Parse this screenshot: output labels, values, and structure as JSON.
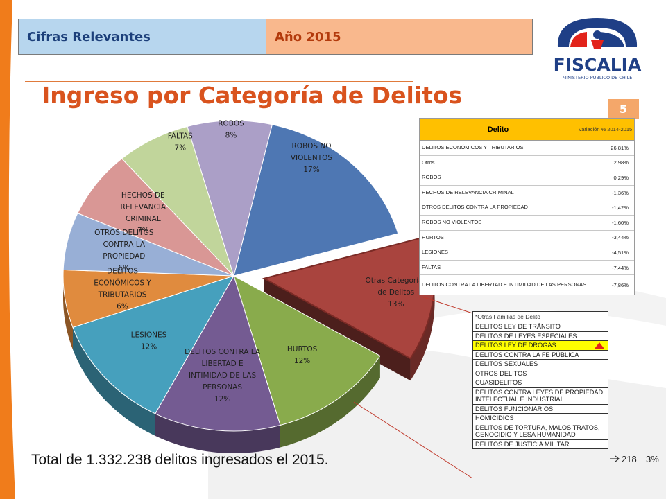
{
  "header": {
    "left": "Cifras Relevantes",
    "right": "Año 2015"
  },
  "logo": {
    "name": "fiscalia-logo",
    "text": "FISCALIA",
    "subtext": "MINISTERIO PUBLICO DE CHILE"
  },
  "title": "Ingreso por Categoría de Delitos",
  "page_number": "5",
  "total_text": "Total de 1.332.238 delitos ingresados el 2015.",
  "chart_data": {
    "type": "pie",
    "style": "3d-exploded",
    "slices": [
      {
        "label": "ROBOS NO VIOLENTOS",
        "value": 17,
        "text": "17%",
        "color": "#4e77b3"
      },
      {
        "label": "Otras Categorías de Delitos",
        "value": 13,
        "text": "13%",
        "color": "#a9443e",
        "exploded": true
      },
      {
        "label": "HURTOS",
        "value": 12,
        "text": "12%",
        "color": "#89ab4c"
      },
      {
        "label": "DELITOS CONTRA LA LIBERTAD E INTIMIDAD DE LAS PERSONAS",
        "value": 12,
        "text": "12%",
        "color": "#745b92"
      },
      {
        "label": "LESIONES",
        "value": 12,
        "text": "12%",
        "color": "#46a0bd"
      },
      {
        "label": "DELITOS ECONÓMICOS Y TRIBUTARIOS",
        "value": 6,
        "text": "6%",
        "color": "#e08b3e"
      },
      {
        "label": "OTROS DELITOS CONTRA LA PROPIEDAD",
        "value": 6,
        "text": "6%",
        "color": "#98afd6"
      },
      {
        "label": "HECHOS DE RELEVANCIA CRIMINAL",
        "value": 7,
        "text": "7%",
        "color": "#d99795"
      },
      {
        "label": "FALTAS",
        "value": 7,
        "text": "7%",
        "color": "#c1d59b"
      },
      {
        "label": "ROBOS",
        "value": 8,
        "text": "8%",
        "color": "#ab9fc7"
      }
    ]
  },
  "variation_table": {
    "header": {
      "delito": "Delito",
      "variacion": "Variación % 2014-2015"
    },
    "rows": [
      {
        "delito": "DELITOS ECONÓMICOS Y TRIBUTARIOS",
        "variacion": "26,81%"
      },
      {
        "delito": "Otros",
        "variacion": "2,98%"
      },
      {
        "delito": "ROBOS",
        "variacion": "0,29%"
      },
      {
        "delito": "HECHOS DE RELEVANCIA CRIMINAL",
        "variacion": "-1,36%"
      },
      {
        "delito": "OTROS DELITOS CONTRA LA PROPIEDAD",
        "variacion": "-1,42%"
      },
      {
        "delito": "ROBOS NO VIOLENTOS",
        "variacion": "-1,60%"
      },
      {
        "delito": "HURTOS",
        "variacion": "-3,44%"
      },
      {
        "delito": "LESIONES",
        "variacion": "-4,51%"
      },
      {
        "delito": "FALTAS",
        "variacion": "-7,44%"
      },
      {
        "delito": "DELITOS CONTRA LA LIBERTAD E INTIMIDAD DE LAS PERSONAS",
        "variacion": "-7,86%"
      }
    ]
  },
  "families_table": {
    "caption": "*Otras Familias de Delito",
    "rows": [
      {
        "text": "DELITOS LEY DE TRÁNSITO",
        "highlight": false
      },
      {
        "text": "DELITOS DE LEYES ESPECIALES",
        "highlight": false
      },
      {
        "text": "DELITOS LEY DE DROGAS",
        "highlight": true
      },
      {
        "text": "DELITOS CONTRA LA FE PÚBLICA",
        "highlight": false
      },
      {
        "text": "DELITOS SEXUALES",
        "highlight": false
      },
      {
        "text": "OTROS DELITOS",
        "highlight": false
      },
      {
        "text": "CUASIDELITOS",
        "highlight": false
      },
      {
        "text": "DELITOS CONTRA LEYES DE PROPIEDAD INTELECTUAL E INDUSTRIAL",
        "highlight": false
      },
      {
        "text": "DELITOS FUNCIONARIOS",
        "highlight": false
      },
      {
        "text": "HOMICIDIOS",
        "highlight": false
      },
      {
        "text": "DELITOS DE TORTURA, MALOS TRATOS, GENOCIDIO Y LESA HUMANIDAD",
        "highlight": false
      },
      {
        "text": "DELITOS DE JUSTICIA MILITAR",
        "highlight": false
      }
    ],
    "side_values": [
      "218",
      "3%"
    ]
  },
  "colors": {
    "accent": "#d9531e",
    "highlight_arrow": "#e2231a"
  }
}
